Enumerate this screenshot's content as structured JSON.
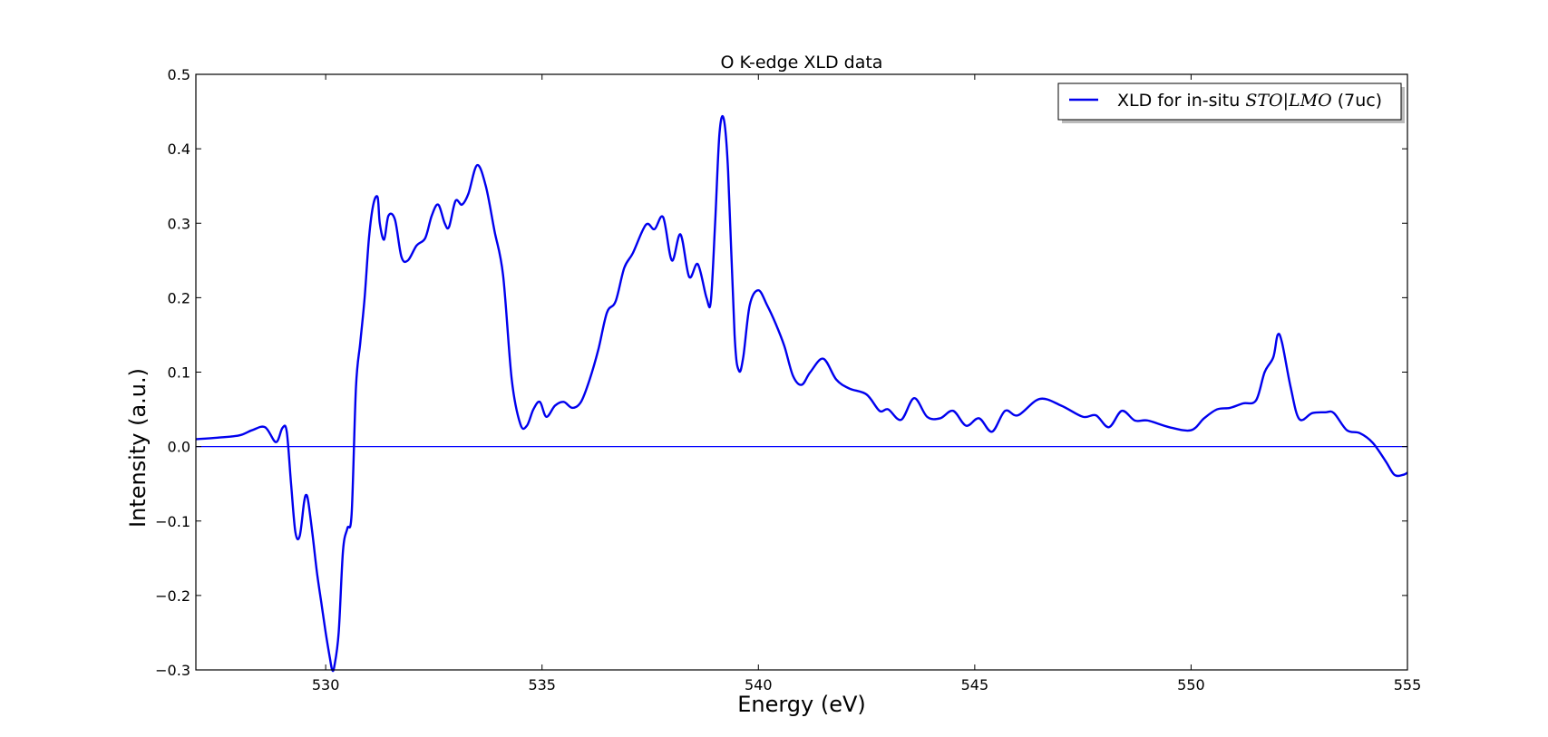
{
  "chart_data": {
    "type": "line",
    "title": "O K-edge XLD data",
    "xlabel": "Energy (eV)",
    "ylabel": "Intensity (a.u.)",
    "xlim": [
      527,
      555
    ],
    "ylim": [
      -0.3,
      0.5
    ],
    "xticks": [
      530,
      535,
      540,
      545,
      550,
      555
    ],
    "xtick_labels": [
      "530",
      "535",
      "540",
      "545",
      "550",
      "555"
    ],
    "yticks": [
      -0.3,
      -0.2,
      -0.1,
      0.0,
      0.1,
      0.2,
      0.3,
      0.4,
      0.5
    ],
    "ytick_labels": [
      "−0.3",
      "−0.2",
      "−0.1",
      "0.0",
      "0.1",
      "0.2",
      "0.3",
      "0.4",
      "0.5"
    ],
    "grid": false,
    "legend": {
      "placement": "top-right",
      "label_prefix": "XLD for in-situ ",
      "label_math": "STO|LMO",
      "label_suffix": " (7uc)"
    },
    "reference_line": {
      "y": 0.0,
      "color": "#0000ff"
    },
    "series": [
      {
        "name": "XLD for in-situ STO|LMO (7uc)",
        "color": "#0000ee",
        "x": [
          527.0,
          527.5,
          528.0,
          528.3,
          528.6,
          528.85,
          529.0,
          529.1,
          529.2,
          529.3,
          529.4,
          529.5,
          529.55,
          529.6,
          529.7,
          529.8,
          529.9,
          530.0,
          530.1,
          530.15,
          530.2,
          530.3,
          530.4,
          530.5,
          530.6,
          530.7,
          530.8,
          530.9,
          531.0,
          531.1,
          531.2,
          531.25,
          531.35,
          531.45,
          531.6,
          531.75,
          531.9,
          532.1,
          532.3,
          532.45,
          532.6,
          532.75,
          532.85,
          533.0,
          533.15,
          533.3,
          533.5,
          533.7,
          533.9,
          534.1,
          534.3,
          534.5,
          534.65,
          534.8,
          534.95,
          535.1,
          535.3,
          535.5,
          535.7,
          535.9,
          536.1,
          536.3,
          536.5,
          536.7,
          536.9,
          537.1,
          537.4,
          537.6,
          537.8,
          538.0,
          538.2,
          538.4,
          538.6,
          538.8,
          538.9,
          539.0,
          539.1,
          539.2,
          539.3,
          539.45,
          539.55,
          539.65,
          539.8,
          540.0,
          540.2,
          540.4,
          540.6,
          540.8,
          541.0,
          541.2,
          541.5,
          541.8,
          542.1,
          542.5,
          542.8,
          543.0,
          543.3,
          543.6,
          543.9,
          544.2,
          544.5,
          544.8,
          545.1,
          545.4,
          545.7,
          546.0,
          546.5,
          547.0,
          547.5,
          547.8,
          548.1,
          548.4,
          548.7,
          549.0,
          549.5,
          550.0,
          550.3,
          550.6,
          550.9,
          551.2,
          551.5,
          551.7,
          551.9,
          552.0,
          552.1,
          552.3,
          552.5,
          552.8,
          553.1,
          553.3,
          553.6,
          553.9,
          554.2,
          554.5,
          554.7,
          554.9,
          555.0
        ],
        "y": [
          0.01,
          0.012,
          0.015,
          0.022,
          0.026,
          0.006,
          0.025,
          0.02,
          -0.05,
          -0.115,
          -0.12,
          -0.075,
          -0.065,
          -0.075,
          -0.12,
          -0.17,
          -0.21,
          -0.25,
          -0.285,
          -0.3,
          -0.295,
          -0.25,
          -0.14,
          -0.11,
          -0.09,
          0.08,
          0.14,
          0.2,
          0.28,
          0.325,
          0.335,
          0.3,
          0.278,
          0.31,
          0.305,
          0.255,
          0.25,
          0.27,
          0.28,
          0.31,
          0.325,
          0.3,
          0.295,
          0.33,
          0.325,
          0.34,
          0.378,
          0.35,
          0.29,
          0.23,
          0.09,
          0.03,
          0.028,
          0.05,
          0.06,
          0.04,
          0.055,
          0.06,
          0.052,
          0.06,
          0.09,
          0.13,
          0.18,
          0.195,
          0.24,
          0.26,
          0.298,
          0.292,
          0.308,
          0.25,
          0.285,
          0.228,
          0.245,
          0.2,
          0.195,
          0.3,
          0.42,
          0.44,
          0.37,
          0.15,
          0.102,
          0.12,
          0.19,
          0.21,
          0.19,
          0.165,
          0.135,
          0.095,
          0.083,
          0.1,
          0.118,
          0.09,
          0.078,
          0.07,
          0.048,
          0.05,
          0.036,
          0.065,
          0.04,
          0.038,
          0.048,
          0.028,
          0.038,
          0.02,
          0.048,
          0.042,
          0.064,
          0.055,
          0.04,
          0.042,
          0.026,
          0.048,
          0.035,
          0.035,
          0.026,
          0.022,
          0.038,
          0.05,
          0.052,
          0.058,
          0.062,
          0.1,
          0.12,
          0.15,
          0.14,
          0.08,
          0.037,
          0.045,
          0.046,
          0.045,
          0.022,
          0.018,
          0.005,
          -0.02,
          -0.038,
          -0.038,
          -0.035
        ]
      }
    ]
  }
}
